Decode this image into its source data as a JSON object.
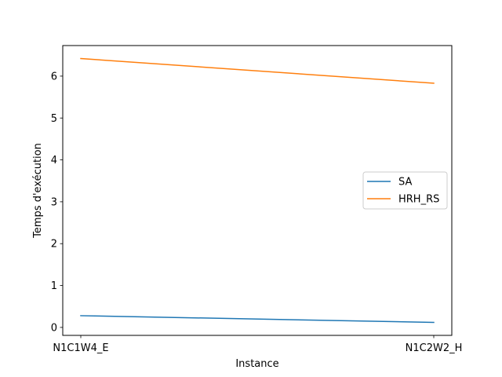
{
  "chart_data": {
    "type": "line",
    "x": [
      "N1C1W4_E",
      "N1C2W2_H"
    ],
    "series": [
      {
        "name": "SA",
        "values": [
          0.28,
          0.12
        ],
        "color": "#1f77b4"
      },
      {
        "name": "HRH_RS",
        "values": [
          6.42,
          5.83
        ],
        "color": "#ff7f0e"
      }
    ],
    "xlabel": "Instance",
    "ylabel": "Temps d'exécution",
    "ylim": [
      -0.19,
      6.73
    ],
    "yticks": [
      0,
      1,
      2,
      3,
      4,
      5,
      6
    ],
    "grid": false,
    "legend_position": "center-right"
  }
}
